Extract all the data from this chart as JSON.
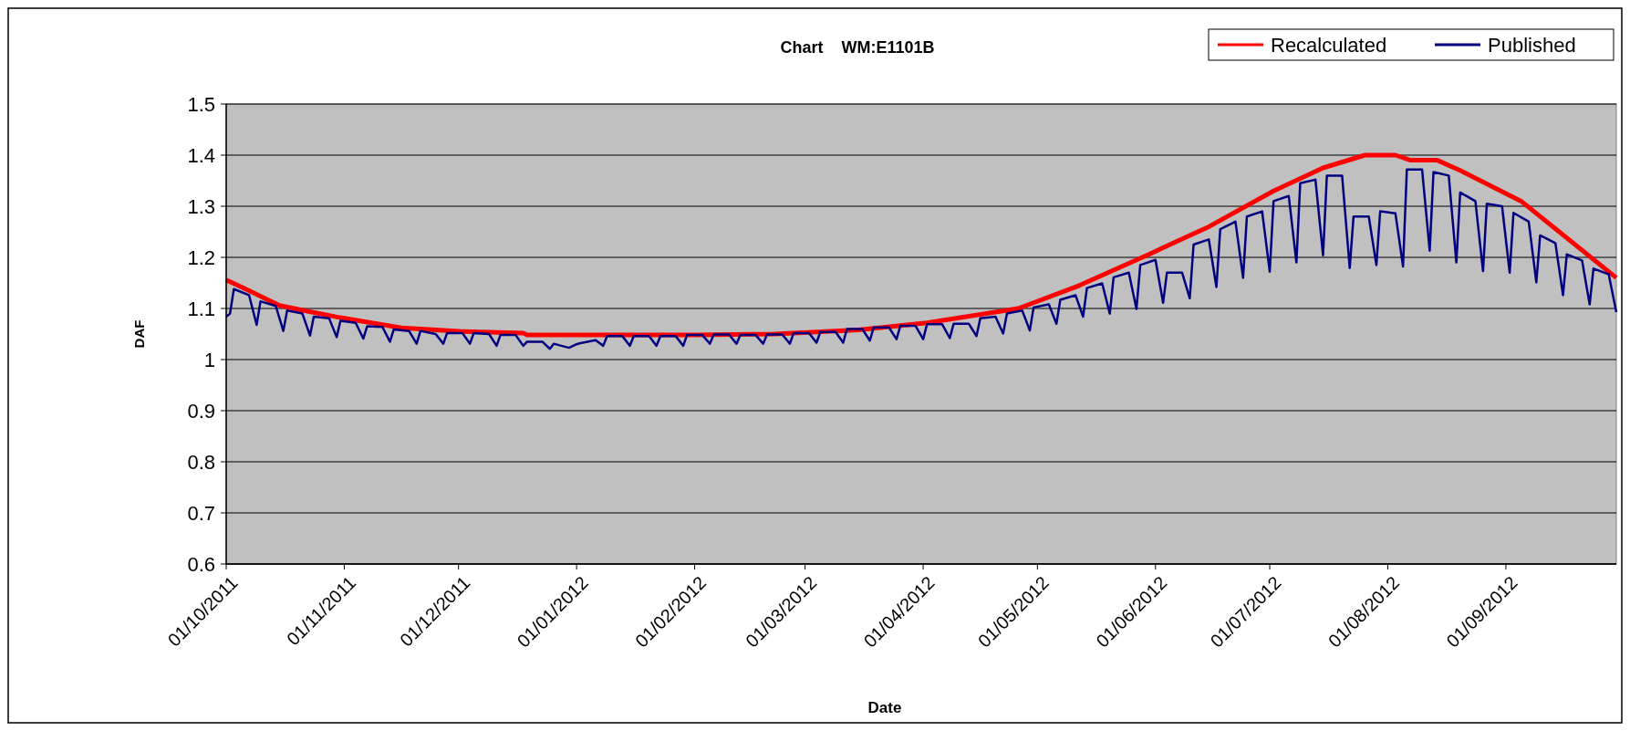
{
  "chart_data": {
    "type": "line",
    "title": "Chart    WM:E1101B",
    "xlabel": "Date",
    "ylabel": "DAF",
    "legend": "top right",
    "grid": "y",
    "marker": "none",
    "line_style": "solid",
    "xlim": [
      "2011-10-01",
      "2012-09-30"
    ],
    "ylim": [
      0.6,
      1.5
    ],
    "yticks": [
      0.6,
      0.7,
      0.8,
      0.9,
      1,
      1.1,
      1.2,
      1.3,
      1.4,
      1.5
    ],
    "xticks": [
      {
        "value": "2011-10-01",
        "label": "01/10/2011"
      },
      {
        "value": "2011-11-01",
        "label": "01/11/2011"
      },
      {
        "value": "2011-12-01",
        "label": "01/12/2011"
      },
      {
        "value": "2012-01-01",
        "label": "01/01/2012"
      },
      {
        "value": "2012-02-01",
        "label": "01/02/2012"
      },
      {
        "value": "2012-03-01",
        "label": "01/03/2012"
      },
      {
        "value": "2012-04-01",
        "label": "01/04/2012"
      },
      {
        "value": "2012-05-01",
        "label": "01/05/2012"
      },
      {
        "value": "2012-06-01",
        "label": "01/06/2012"
      },
      {
        "value": "2012-07-01",
        "label": "01/07/2012"
      },
      {
        "value": "2012-08-01",
        "label": "01/08/2012"
      },
      {
        "value": "2012-09-01",
        "label": "01/09/2012"
      }
    ],
    "series": [
      {
        "name": "Recalculated",
        "color": "#ff0000",
        "x": [
          "2011-10-01",
          "2011-10-07",
          "2011-10-15",
          "2011-10-22",
          "2011-10-31",
          "2011-11-16",
          "2011-12-02",
          "2011-12-18",
          "2011-12-19",
          "2012-02-01",
          "2012-02-22",
          "2012-03-15",
          "2012-04-02",
          "2012-04-26",
          "2012-05-12",
          "2012-05-30",
          "2012-06-15",
          "2012-07-02",
          "2012-07-15",
          "2012-07-26",
          "2012-08-03",
          "2012-08-07",
          "2012-08-14",
          "2012-08-20",
          "2012-09-05",
          "2012-09-30"
        ],
        "values": [
          1.156,
          1.135,
          1.106,
          1.095,
          1.082,
          1.062,
          1.055,
          1.052,
          1.048,
          1.048,
          1.05,
          1.058,
          1.072,
          1.1,
          1.145,
          1.205,
          1.26,
          1.33,
          1.375,
          1.4,
          1.4,
          1.39,
          1.39,
          1.37,
          1.31,
          1.16
        ]
      },
      {
        "name": "Published",
        "color": "#000080",
        "x": [
          "2011-10-01",
          "2011-10-02",
          "2011-10-03",
          "2011-10-07",
          "2011-10-09",
          "2011-10-10",
          "2011-10-14",
          "2011-10-16",
          "2011-10-17",
          "2011-10-21",
          "2011-10-23",
          "2011-10-24",
          "2011-10-28",
          "2011-10-30",
          "2011-10-31",
          "2011-11-04",
          "2011-11-06",
          "2011-11-07",
          "2011-11-11",
          "2011-11-13",
          "2011-11-14",
          "2011-11-18",
          "2011-11-20",
          "2011-11-21",
          "2011-11-25",
          "2011-11-27",
          "2011-11-28",
          "2011-12-02",
          "2011-12-04",
          "2011-12-05",
          "2011-12-09",
          "2011-12-11",
          "2011-12-12",
          "2011-12-16",
          "2011-12-18",
          "2011-12-19",
          "2011-12-23",
          "2011-12-25",
          "2011-12-26",
          "2011-12-30",
          "2012-01-01",
          "2012-01-02",
          "2012-01-06",
          "2012-01-08",
          "2012-01-09",
          "2012-01-13",
          "2012-01-15",
          "2012-01-16",
          "2012-01-20",
          "2012-01-22",
          "2012-01-23",
          "2012-01-27",
          "2012-01-29",
          "2012-01-30",
          "2012-02-03",
          "2012-02-05",
          "2012-02-06",
          "2012-02-10",
          "2012-02-12",
          "2012-02-13",
          "2012-02-17",
          "2012-02-19",
          "2012-02-20",
          "2012-02-24",
          "2012-02-26",
          "2012-02-27",
          "2012-03-02",
          "2012-03-04",
          "2012-03-05",
          "2012-03-09",
          "2012-03-11",
          "2012-03-12",
          "2012-03-16",
          "2012-03-18",
          "2012-03-19",
          "2012-03-23",
          "2012-03-25",
          "2012-03-26",
          "2012-03-30",
          "2012-04-01",
          "2012-04-02",
          "2012-04-06",
          "2012-04-08",
          "2012-04-09",
          "2012-04-13",
          "2012-04-15",
          "2012-04-16",
          "2012-04-20",
          "2012-04-22",
          "2012-04-23",
          "2012-04-27",
          "2012-04-29",
          "2012-04-30",
          "2012-05-04",
          "2012-05-06",
          "2012-05-07",
          "2012-05-11",
          "2012-05-13",
          "2012-05-14",
          "2012-05-18",
          "2012-05-20",
          "2012-05-21",
          "2012-05-25",
          "2012-05-27",
          "2012-05-28",
          "2012-06-01",
          "2012-06-03",
          "2012-06-04",
          "2012-06-08",
          "2012-06-10",
          "2012-06-11",
          "2012-06-15",
          "2012-06-17",
          "2012-06-18",
          "2012-06-22",
          "2012-06-24",
          "2012-06-25",
          "2012-06-29",
          "2012-07-01",
          "2012-07-02",
          "2012-07-06",
          "2012-07-08",
          "2012-07-09",
          "2012-07-13",
          "2012-07-15",
          "2012-07-16",
          "2012-07-20",
          "2012-07-22",
          "2012-07-23",
          "2012-07-27",
          "2012-07-29",
          "2012-07-30",
          "2012-08-03",
          "2012-08-05",
          "2012-08-06",
          "2012-08-10",
          "2012-08-12",
          "2012-08-13",
          "2012-08-17",
          "2012-08-19",
          "2012-08-20",
          "2012-08-24",
          "2012-08-26",
          "2012-08-27",
          "2012-08-31",
          "2012-09-02",
          "2012-09-03",
          "2012-09-07",
          "2012-09-09",
          "2012-09-10",
          "2012-09-14",
          "2012-09-16",
          "2012-09-17",
          "2012-09-21",
          "2012-09-23",
          "2012-09-24",
          "2012-09-28",
          "2012-09-30"
        ],
        "values": [
          1.084,
          1.09,
          1.138,
          1.126,
          1.068,
          1.114,
          1.105,
          1.056,
          1.096,
          1.09,
          1.047,
          1.084,
          1.081,
          1.044,
          1.076,
          1.072,
          1.041,
          1.065,
          1.064,
          1.035,
          1.059,
          1.056,
          1.031,
          1.056,
          1.05,
          1.031,
          1.052,
          1.052,
          1.031,
          1.052,
          1.05,
          1.027,
          1.048,
          1.048,
          1.027,
          1.035,
          1.035,
          1.021,
          1.031,
          1.023,
          1.03,
          1.032,
          1.038,
          1.027,
          1.046,
          1.046,
          1.027,
          1.046,
          1.046,
          1.027,
          1.046,
          1.046,
          1.027,
          1.048,
          1.048,
          1.031,
          1.049,
          1.049,
          1.031,
          1.048,
          1.048,
          1.031,
          1.049,
          1.049,
          1.031,
          1.052,
          1.052,
          1.033,
          1.054,
          1.054,
          1.033,
          1.06,
          1.06,
          1.037,
          1.063,
          1.063,
          1.04,
          1.066,
          1.066,
          1.04,
          1.069,
          1.069,
          1.042,
          1.07,
          1.07,
          1.046,
          1.081,
          1.084,
          1.051,
          1.09,
          1.096,
          1.057,
          1.102,
          1.108,
          1.07,
          1.117,
          1.126,
          1.084,
          1.14,
          1.149,
          1.09,
          1.161,
          1.17,
          1.099,
          1.185,
          1.195,
          1.111,
          1.17,
          1.17,
          1.12,
          1.225,
          1.235,
          1.142,
          1.255,
          1.27,
          1.16,
          1.28,
          1.29,
          1.172,
          1.31,
          1.32,
          1.19,
          1.345,
          1.352,
          1.204,
          1.36,
          1.36,
          1.179,
          1.28,
          1.28,
          1.185,
          1.29,
          1.286,
          1.182,
          1.372,
          1.372,
          1.213,
          1.367,
          1.36,
          1.19,
          1.327,
          1.31,
          1.173,
          1.305,
          1.3,
          1.17,
          1.287,
          1.27,
          1.151,
          1.243,
          1.228,
          1.126,
          1.206,
          1.194,
          1.108,
          1.178,
          1.167,
          1.093
        ]
      }
    ]
  }
}
